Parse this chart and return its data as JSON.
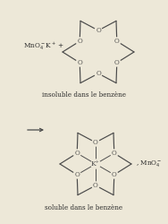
{
  "bg_color": "#ede8d8",
  "line_color": "#4a4a4a",
  "text_color": "#2a2a2a",
  "fig_width": 1.88,
  "fig_height": 2.5,
  "dpi": 100,
  "label_top": "insoluble dans le benzène",
  "label_bottom": "soluble dans le benzène",
  "formula_top_mno4": "MnO",
  "formula_top_k": "K",
  "formula_bottom_right_mno4": "MnO",
  "arrow": "→"
}
